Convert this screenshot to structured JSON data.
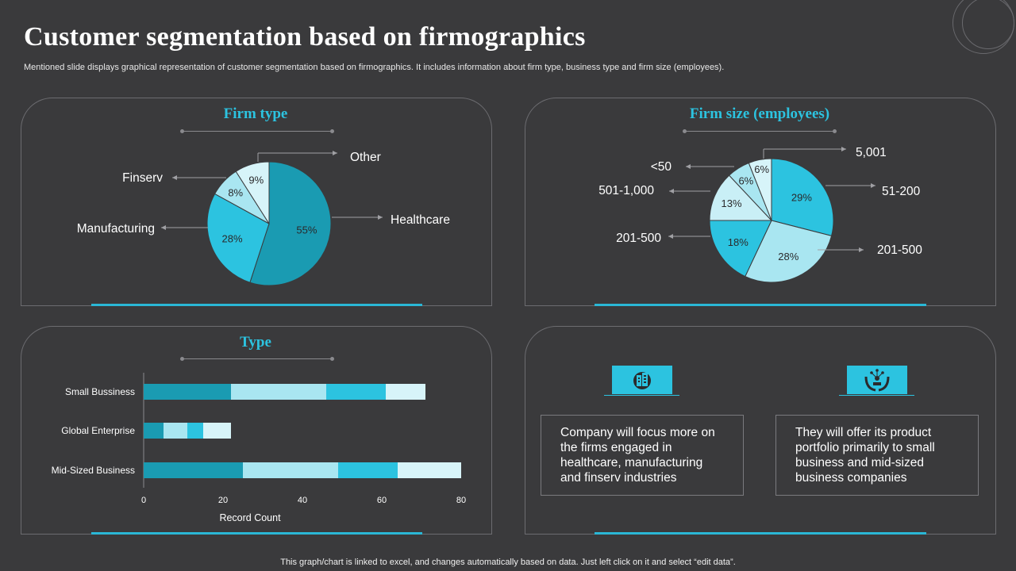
{
  "title": "Customer segmentation based on firmographics",
  "subtitle": "Mentioned slide displays graphical representation of customer segmentation based on firmographics. It includes information about firm type, business type and firm size (employees).",
  "footer": "This graph/chart is linked to excel, and changes automatically based on data. Just left click on it and select “edit data”.",
  "info": {
    "box1": "Company will focus more on the firms engaged in healthcare, manufacturing and finserv industries",
    "box2": "They will offer its product portfolio primarily to small business and mid-sized business companies",
    "icon1": "building-icon",
    "icon2": "hands-network-icon"
  },
  "chart_data": [
    {
      "type": "pie",
      "title": "Firm type",
      "slices": [
        {
          "label": "Healthcare",
          "value": 55,
          "display": "55%",
          "color": "#1a9bb2"
        },
        {
          "label": "Manufacturing",
          "value": 28,
          "display": "28%",
          "color": "#2cc3e0"
        },
        {
          "label": "Finserv",
          "value": 8,
          "display": "8%",
          "color": "#a9e6f1"
        },
        {
          "label": "Other",
          "value": 9,
          "display": "9%",
          "color": "#d7f4f9"
        }
      ]
    },
    {
      "type": "pie",
      "title": "Firm size (employees)",
      "slices": [
        {
          "label": "51-200",
          "value": 29,
          "display": "29%",
          "color": "#2cc3e0"
        },
        {
          "label": "201-500",
          "value": 28,
          "display": "28%",
          "color": "#a9e6f1"
        },
        {
          "label": "201-500",
          "value": 18,
          "display": "18%",
          "color": "#2cc3e0"
        },
        {
          "label": "501-1,000",
          "value": 13,
          "display": "13%",
          "color": "#c9eff6"
        },
        {
          "label": "<50",
          "value": 6,
          "display": "6%",
          "color": "#a9e6f1"
        },
        {
          "label": "5,001",
          "value": 6,
          "display": "6%",
          "color": "#d7f4f9"
        }
      ]
    },
    {
      "type": "bar",
      "orientation": "horizontal",
      "stacked": true,
      "title": "Type",
      "xlabel": "Record  Count",
      "xlim": [
        0,
        80
      ],
      "xticks": [
        0,
        20,
        40,
        60,
        80
      ],
      "categories": [
        "Small Bussiness",
        "Global Enterprise",
        "Mid-Sized Business"
      ],
      "series": [
        {
          "values": [
            22,
            5,
            25
          ],
          "color": "#1a9bb2"
        },
        {
          "values": [
            24,
            6,
            24
          ],
          "color": "#a9e6f1"
        },
        {
          "values": [
            15,
            4,
            15
          ],
          "color": "#2cc3e0"
        },
        {
          "values": [
            10,
            7,
            16
          ],
          "color": "#d7f4f9"
        }
      ]
    }
  ]
}
